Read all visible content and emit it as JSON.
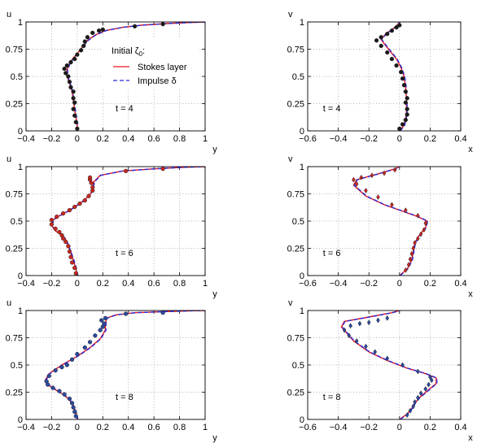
{
  "legend": {
    "title": "Initial ζ",
    "title_sub": "0",
    "title_suffix": ":",
    "entries": [
      {
        "label": "Stokes layer",
        "color": "#e8141c",
        "dash": "solid"
      },
      {
        "label": "Impulse δ",
        "color": "#2b2bdc",
        "dash": "dashed"
      }
    ]
  },
  "colors": {
    "curve_red": "#e8141c",
    "curve_blue": "#2b2bdc",
    "marker_dark": "#1a1a1a",
    "marker_red": "#c8281e",
    "marker_blue": "#2b4aa0"
  },
  "chart_data": [
    {
      "type": "line",
      "panel": "u-t4",
      "time_label": "t = 4",
      "xlabel": "y",
      "ylabel": "u",
      "xlim": [
        -0.4,
        1
      ],
      "ylim": [
        0,
        1
      ],
      "xticks": [
        "−0.4",
        "−0.2",
        "0",
        "0.2",
        "0.4",
        "0.6",
        "0.8",
        "1"
      ],
      "yticks": [
        "0",
        "0.25",
        "0.5",
        "0.75",
        "1"
      ],
      "grid": true,
      "legend": "top-right",
      "series": [
        {
          "name": "Stokes layer",
          "x": [
            0.0,
            0.0,
            -0.01,
            -0.02,
            -0.03,
            -0.04,
            -0.06,
            -0.08,
            -0.08,
            -0.06,
            -0.03,
            0.0,
            0.04,
            0.08,
            0.14,
            0.22,
            0.35,
            0.5,
            0.7,
            0.88,
            1.0
          ],
          "y": [
            0.0,
            0.05,
            0.12,
            0.2,
            0.28,
            0.36,
            0.44,
            0.5,
            0.56,
            0.62,
            0.67,
            0.71,
            0.77,
            0.83,
            0.88,
            0.92,
            0.95,
            0.97,
            0.985,
            0.995,
            1.0
          ]
        },
        {
          "name": "Impulse δ",
          "x": [
            0.0,
            0.0,
            -0.01,
            -0.02,
            -0.03,
            -0.04,
            -0.06,
            -0.08,
            -0.08,
            -0.06,
            -0.03,
            0.0,
            0.04,
            0.08,
            0.14,
            0.22,
            0.35,
            0.5,
            0.7,
            0.88,
            1.0
          ],
          "y": [
            0.0,
            0.05,
            0.12,
            0.2,
            0.28,
            0.36,
            0.44,
            0.5,
            0.56,
            0.62,
            0.67,
            0.71,
            0.77,
            0.83,
            0.88,
            0.92,
            0.95,
            0.97,
            0.985,
            0.995,
            1.0
          ]
        },
        {
          "name": "",
          "marker": "dot",
          "color": "#1a1a1a",
          "x": [
            0.0,
            -0.01,
            -0.02,
            -0.03,
            -0.02,
            -0.03,
            -0.03,
            -0.05,
            -0.06,
            -0.07,
            -0.09,
            -0.1,
            -0.08,
            -0.05,
            -0.02,
            0.0,
            0.03,
            0.05,
            0.06,
            0.08,
            0.12,
            0.17,
            0.2,
            0.45,
            0.67
          ],
          "y": [
            0.02,
            0.08,
            0.14,
            0.2,
            0.26,
            0.3,
            0.36,
            0.4,
            0.45,
            0.5,
            0.53,
            0.57,
            0.6,
            0.63,
            0.66,
            0.7,
            0.74,
            0.78,
            0.82,
            0.86,
            0.9,
            0.92,
            0.93,
            0.96,
            0.98
          ]
        }
      ]
    },
    {
      "type": "line",
      "panel": "v-t4",
      "time_label": "t = 4",
      "xlabel": "x",
      "ylabel": "v",
      "xlim": [
        -0.6,
        0.4
      ],
      "ylim": [
        0,
        1
      ],
      "xticks": [
        "−0.6",
        "−0.4",
        "−0.2",
        "0",
        "0.2",
        "0.4"
      ],
      "yticks": [
        "0",
        "0.25",
        "0.5",
        "0.75",
        "1"
      ],
      "grid": true,
      "series": [
        {
          "name": "Stokes layer",
          "x": [
            0.0,
            0.03,
            0.045,
            0.045,
            0.04,
            0.03,
            0.01,
            -0.02,
            -0.06,
            -0.1,
            -0.12,
            -0.09,
            -0.04,
            -0.01,
            0.0
          ],
          "y": [
            0.0,
            0.05,
            0.15,
            0.3,
            0.4,
            0.5,
            0.58,
            0.66,
            0.73,
            0.8,
            0.84,
            0.89,
            0.94,
            0.98,
            1.0
          ]
        },
        {
          "name": "Impulse δ",
          "x": [
            0.0,
            0.03,
            0.045,
            0.045,
            0.04,
            0.03,
            0.01,
            -0.02,
            -0.06,
            -0.1,
            -0.12,
            -0.09,
            -0.04,
            -0.01,
            0.0
          ],
          "y": [
            0.0,
            0.05,
            0.15,
            0.3,
            0.4,
            0.5,
            0.58,
            0.66,
            0.73,
            0.8,
            0.84,
            0.89,
            0.94,
            0.98,
            1.0
          ]
        },
        {
          "name": "",
          "marker": "dot",
          "color": "#1a1a1a",
          "x": [
            0.0,
            0.02,
            0.04,
            0.05,
            0.05,
            0.04,
            0.05,
            0.04,
            0.03,
            0.02,
            0.01,
            -0.02,
            -0.05,
            -0.08,
            -0.12,
            -0.15,
            -0.12,
            -0.08,
            -0.05,
            -0.02,
            0.0
          ],
          "y": [
            0.02,
            0.06,
            0.1,
            0.15,
            0.2,
            0.26,
            0.3,
            0.36,
            0.42,
            0.48,
            0.54,
            0.6,
            0.66,
            0.72,
            0.78,
            0.83,
            0.86,
            0.89,
            0.92,
            0.95,
            0.97
          ]
        }
      ]
    },
    {
      "type": "line",
      "panel": "u-t6",
      "time_label": "t = 6",
      "xlabel": "y",
      "ylabel": "u",
      "xlim": [
        -0.4,
        1
      ],
      "ylim": [
        0,
        1
      ],
      "xticks": [
        "−0.4",
        "−0.2",
        "0",
        "0.2",
        "0.4",
        "0.6",
        "0.8",
        "1"
      ],
      "yticks": [
        "0",
        "0.25",
        "0.5",
        "0.75",
        "1"
      ],
      "grid": true,
      "series": [
        {
          "name": "Stokes layer",
          "x": [
            0.0,
            -0.01,
            -0.03,
            -0.06,
            -0.08,
            -0.09,
            -0.12,
            -0.17,
            -0.2,
            -0.19,
            -0.14,
            -0.06,
            0.03,
            0.1,
            0.12,
            0.13,
            0.18,
            0.35,
            0.6,
            0.85,
            1.0
          ],
          "y": [
            0.0,
            0.06,
            0.14,
            0.24,
            0.3,
            0.33,
            0.37,
            0.41,
            0.46,
            0.51,
            0.55,
            0.6,
            0.67,
            0.74,
            0.8,
            0.86,
            0.92,
            0.96,
            0.98,
            0.995,
            1.0
          ]
        },
        {
          "name": "Impulse δ",
          "x": [
            0.0,
            -0.01,
            -0.03,
            -0.06,
            -0.08,
            -0.09,
            -0.12,
            -0.17,
            -0.2,
            -0.19,
            -0.14,
            -0.06,
            0.03,
            0.1,
            0.12,
            0.13,
            0.18,
            0.35,
            0.6,
            0.85,
            1.0
          ],
          "y": [
            0.0,
            0.06,
            0.14,
            0.24,
            0.3,
            0.33,
            0.37,
            0.41,
            0.46,
            0.51,
            0.55,
            0.6,
            0.67,
            0.74,
            0.8,
            0.86,
            0.92,
            0.96,
            0.98,
            0.995,
            1.0
          ]
        },
        {
          "name": "",
          "marker": "dot",
          "color": "#c8281e",
          "x": [
            -0.01,
            -0.02,
            -0.04,
            -0.05,
            -0.06,
            -0.07,
            -0.09,
            -0.11,
            -0.12,
            -0.14,
            -0.17,
            -0.2,
            -0.2,
            -0.16,
            -0.11,
            -0.06,
            -0.02,
            0.02,
            0.06,
            0.09,
            0.12,
            0.12,
            0.11,
            0.1,
            0.1,
            0.38,
            0.67
          ],
          "y": [
            0.02,
            0.07,
            0.12,
            0.17,
            0.22,
            0.27,
            0.31,
            0.34,
            0.37,
            0.4,
            0.43,
            0.47,
            0.51,
            0.54,
            0.57,
            0.6,
            0.63,
            0.66,
            0.69,
            0.73,
            0.78,
            0.81,
            0.85,
            0.88,
            0.9,
            0.96,
            0.98
          ]
        }
      ]
    },
    {
      "type": "line",
      "panel": "v-t6",
      "time_label": "t = 6",
      "xlabel": "x",
      "ylabel": "v",
      "xlim": [
        -0.6,
        0.4
      ],
      "ylim": [
        0,
        1
      ],
      "xticks": [
        "−0.6",
        "−0.4",
        "−0.2",
        "0",
        "0.2",
        "0.4"
      ],
      "yticks": [
        "0",
        "0.25",
        "0.5",
        "0.75",
        "1"
      ],
      "grid": true,
      "series": [
        {
          "name": "Stokes layer",
          "x": [
            0.0,
            0.05,
            0.08,
            0.09,
            0.1,
            0.13,
            0.17,
            0.18,
            0.12,
            0.02,
            -0.1,
            -0.22,
            -0.3,
            -0.28,
            -0.15,
            -0.03,
            0.0
          ],
          "y": [
            0.0,
            0.06,
            0.14,
            0.22,
            0.3,
            0.37,
            0.44,
            0.5,
            0.54,
            0.59,
            0.65,
            0.73,
            0.83,
            0.88,
            0.93,
            0.98,
            1.0
          ]
        },
        {
          "name": "Impulse δ",
          "x": [
            0.0,
            0.05,
            0.08,
            0.09,
            0.1,
            0.13,
            0.17,
            0.18,
            0.12,
            0.02,
            -0.1,
            -0.22,
            -0.3,
            -0.28,
            -0.15,
            -0.03,
            0.0
          ],
          "y": [
            0.0,
            0.06,
            0.14,
            0.22,
            0.3,
            0.37,
            0.44,
            0.5,
            0.54,
            0.59,
            0.65,
            0.73,
            0.83,
            0.88,
            0.93,
            0.98,
            1.0
          ]
        },
        {
          "name": "",
          "marker": "diamond",
          "color": "#c8281e",
          "x": [
            0.04,
            0.06,
            0.07,
            0.08,
            0.09,
            0.1,
            0.12,
            0.14,
            0.16,
            0.17,
            0.12,
            0.04,
            -0.05,
            -0.14,
            -0.22,
            -0.28,
            -0.3,
            -0.25,
            -0.18,
            -0.1,
            -0.03
          ],
          "y": [
            0.05,
            0.1,
            0.15,
            0.2,
            0.25,
            0.3,
            0.34,
            0.38,
            0.42,
            0.48,
            0.55,
            0.6,
            0.65,
            0.72,
            0.78,
            0.84,
            0.88,
            0.9,
            0.92,
            0.94,
            0.97
          ]
        }
      ]
    },
    {
      "type": "line",
      "panel": "u-t8",
      "time_label": "t = 8",
      "xlabel": "y",
      "ylabel": "u",
      "xlim": [
        -0.4,
        1
      ],
      "ylim": [
        0,
        1
      ],
      "xticks": [
        "−0.4",
        "−0.2",
        "0",
        "0.2",
        "0.4",
        "0.6",
        "0.8",
        "1"
      ],
      "yticks": [
        "0",
        "0.25",
        "0.5",
        "0.75",
        "1"
      ],
      "grid": true,
      "series": [
        {
          "name": "Stokes layer",
          "x": [
            0.0,
            -0.01,
            -0.03,
            -0.06,
            -0.11,
            -0.18,
            -0.23,
            -0.25,
            -0.22,
            -0.12,
            0.0,
            0.1,
            0.18,
            0.22,
            0.22,
            0.23,
            0.3,
            0.45,
            0.7,
            0.9,
            1.0
          ],
          "y": [
            0.0,
            0.06,
            0.12,
            0.18,
            0.23,
            0.28,
            0.32,
            0.36,
            0.42,
            0.5,
            0.58,
            0.66,
            0.74,
            0.82,
            0.88,
            0.93,
            0.96,
            0.98,
            0.99,
            0.998,
            1.0
          ]
        },
        {
          "name": "Impulse δ",
          "x": [
            0.0,
            -0.01,
            -0.03,
            -0.06,
            -0.11,
            -0.18,
            -0.23,
            -0.25,
            -0.22,
            -0.12,
            0.0,
            0.1,
            0.18,
            0.22,
            0.22,
            0.23,
            0.3,
            0.45,
            0.7,
            0.9,
            1.0
          ],
          "y": [
            0.0,
            0.06,
            0.12,
            0.18,
            0.23,
            0.28,
            0.32,
            0.36,
            0.42,
            0.5,
            0.58,
            0.66,
            0.74,
            0.82,
            0.88,
            0.93,
            0.96,
            0.98,
            0.99,
            0.998,
            1.0
          ]
        },
        {
          "name": "",
          "marker": "dot",
          "color": "#2b4aa0",
          "x": [
            -0.01,
            -0.02,
            -0.03,
            -0.04,
            -0.06,
            -0.1,
            -0.14,
            -0.19,
            -0.23,
            -0.24,
            -0.22,
            -0.17,
            -0.12,
            -0.08,
            -0.04,
            0.0,
            0.06,
            0.1,
            0.14,
            0.18,
            0.2,
            0.21,
            0.19,
            0.22,
            0.38,
            0.67
          ],
          "y": [
            0.03,
            0.07,
            0.11,
            0.15,
            0.19,
            0.23,
            0.26,
            0.29,
            0.32,
            0.35,
            0.4,
            0.45,
            0.48,
            0.5,
            0.55,
            0.6,
            0.66,
            0.71,
            0.77,
            0.82,
            0.85,
            0.88,
            0.91,
            0.93,
            0.97,
            0.98
          ]
        }
      ]
    },
    {
      "type": "line",
      "panel": "v-t8",
      "time_label": "t = 8",
      "xlabel": "x",
      "ylabel": "v",
      "xlim": [
        -0.6,
        0.4
      ],
      "ylim": [
        0,
        1
      ],
      "xticks": [
        "−0.6",
        "−0.4",
        "−0.2",
        "0",
        "0.2",
        "0.4"
      ],
      "yticks": [
        "0",
        "0.25",
        "0.5",
        "0.75",
        "1"
      ],
      "grid": true,
      "series": [
        {
          "name": "Stokes layer",
          "x": [
            0.0,
            0.05,
            0.08,
            0.1,
            0.13,
            0.18,
            0.24,
            0.24,
            0.17,
            0.05,
            -0.08,
            -0.2,
            -0.3,
            -0.38,
            -0.36,
            -0.2,
            -0.05,
            0.0
          ],
          "y": [
            0.0,
            0.05,
            0.1,
            0.15,
            0.2,
            0.26,
            0.33,
            0.38,
            0.42,
            0.47,
            0.54,
            0.62,
            0.72,
            0.85,
            0.9,
            0.94,
            0.98,
            1.0
          ]
        },
        {
          "name": "Impulse δ",
          "x": [
            0.0,
            0.05,
            0.08,
            0.1,
            0.13,
            0.18,
            0.24,
            0.24,
            0.17,
            0.05,
            -0.08,
            -0.2,
            -0.3,
            -0.38,
            -0.36,
            -0.2,
            -0.05,
            0.0
          ],
          "y": [
            0.0,
            0.05,
            0.1,
            0.15,
            0.2,
            0.26,
            0.33,
            0.38,
            0.42,
            0.47,
            0.54,
            0.62,
            0.72,
            0.85,
            0.9,
            0.94,
            0.98,
            1.0
          ]
        },
        {
          "name": "",
          "marker": "diamond",
          "color": "#2b4aa0",
          "x": [
            0.05,
            0.07,
            0.09,
            0.1,
            0.12,
            0.14,
            0.17,
            0.19,
            0.21,
            0.2,
            0.12,
            0.02,
            -0.08,
            -0.16,
            -0.22,
            -0.28,
            -0.33,
            -0.36,
            -0.32,
            -0.26,
            -0.2,
            -0.14,
            -0.08
          ],
          "y": [
            0.04,
            0.08,
            0.12,
            0.16,
            0.2,
            0.24,
            0.28,
            0.32,
            0.36,
            0.39,
            0.44,
            0.5,
            0.56,
            0.62,
            0.67,
            0.72,
            0.77,
            0.82,
            0.86,
            0.88,
            0.89,
            0.91,
            0.93
          ]
        }
      ]
    }
  ]
}
